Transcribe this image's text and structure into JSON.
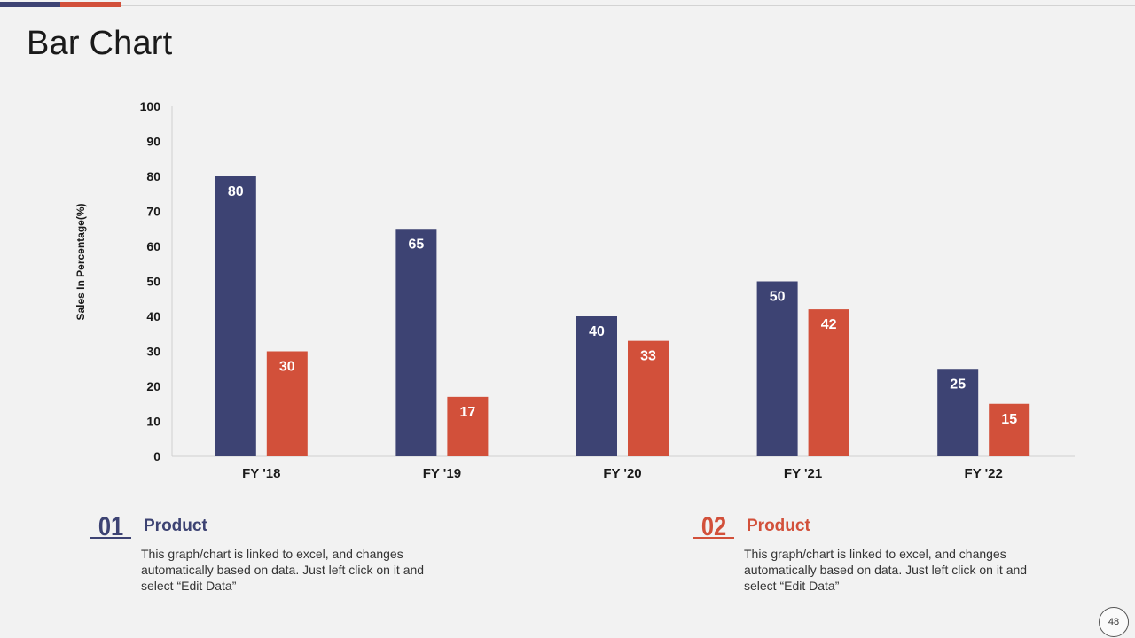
{
  "title": "Bar Chart",
  "page_number": "48",
  "colors": {
    "series1": "#3d4373",
    "series2": "#d2503a"
  },
  "chart_data": {
    "type": "bar",
    "title": "",
    "xlabel": "",
    "ylabel": "Sales In Percentage(%)",
    "ylim": [
      0,
      100
    ],
    "yticks": [
      "0",
      "10",
      "20",
      "30",
      "40",
      "50",
      "60",
      "70",
      "80",
      "90",
      "100"
    ],
    "categories": [
      "FY '18",
      "FY '19",
      "FY '20",
      "FY '21",
      "FY '22"
    ],
    "series": [
      {
        "name": "Product 01",
        "values": [
          80,
          65,
          40,
          50,
          25
        ]
      },
      {
        "name": "Product 02",
        "values": [
          30,
          17,
          33,
          42,
          15
        ]
      }
    ],
    "grid": false,
    "data_labels": true
  },
  "legend": [
    {
      "number": "01",
      "label": "Product",
      "description": "This graph/chart is linked to excel, and changes automatically based on data. Just left click on it and select “Edit Data”"
    },
    {
      "number": "02",
      "label": "Product",
      "description": "This graph/chart is linked to excel, and changes automatically based on data. Just left click on it and select “Edit Data”"
    }
  ]
}
